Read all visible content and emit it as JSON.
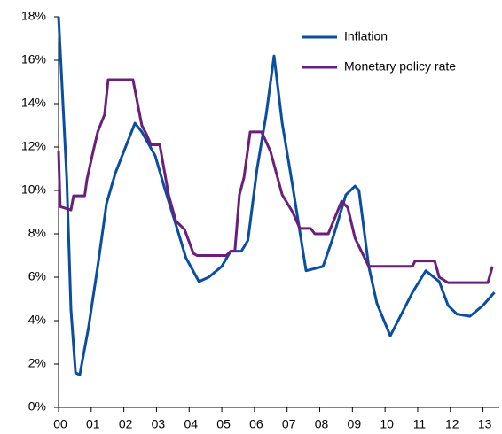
{
  "chart_data": {
    "type": "line",
    "series": [
      {
        "name": "Inflation",
        "color": "#0a4ea2",
        "x": [
          0,
          0.25,
          0.38,
          0.52,
          0.65,
          0.92,
          1.2,
          1.47,
          1.74,
          2.0,
          2.34,
          2.55,
          2.96,
          3.23,
          3.64,
          3.9,
          4.3,
          4.6,
          5.0,
          5.27,
          5.6,
          5.8,
          6.08,
          6.36,
          6.6,
          6.85,
          7.17,
          7.58,
          7.85,
          8.1,
          8.4,
          8.8,
          9.08,
          9.2,
          9.5,
          9.75,
          10.16,
          10.57,
          10.84,
          11.25,
          11.66,
          11.93,
          12.2,
          12.6,
          13.0,
          13.35
        ],
        "values": [
          18,
          10.6,
          4.5,
          1.6,
          1.5,
          3.7,
          6.5,
          9.4,
          10.8,
          11.8,
          13.1,
          12.7,
          11.6,
          10.2,
          8.2,
          6.9,
          5.8,
          6.0,
          6.5,
          7.2,
          7.2,
          7.7,
          11.0,
          13.5,
          16.2,
          13.1,
          10.2,
          6.3,
          6.4,
          6.5,
          7.8,
          9.8,
          10.2,
          10.0,
          6.5,
          4.8,
          3.3,
          4.5,
          5.3,
          6.3,
          5.8,
          4.7,
          4.3,
          4.2,
          4.7,
          5.3
        ]
      },
      {
        "name": "Monetary policy rate",
        "color": "#6a1f7a",
        "x": [
          0,
          0.05,
          0.38,
          0.46,
          0.8,
          0.87,
          1.03,
          1.2,
          1.41,
          1.52,
          2.28,
          2.55,
          2.69,
          2.83,
          3.1,
          3.37,
          3.59,
          3.86,
          4.13,
          4.24,
          5.14,
          5.27,
          5.4,
          5.54,
          5.68,
          5.87,
          6.22,
          6.49,
          6.85,
          7.17,
          7.39,
          7.72,
          7.85,
          8.26,
          8.67,
          8.86,
          9.08,
          9.5,
          10.84,
          10.92,
          11.52,
          11.66,
          11.93,
          13.15,
          13.29
        ],
        "values": [
          11.8,
          9.25,
          9.1,
          9.75,
          9.75,
          10.5,
          11.6,
          12.7,
          13.5,
          15.1,
          15.1,
          13.0,
          12.6,
          12.1,
          12.1,
          9.8,
          8.6,
          8.2,
          7.1,
          7.0,
          7.0,
          7.2,
          7.2,
          9.8,
          10.6,
          12.7,
          12.7,
          11.8,
          9.8,
          9.0,
          8.25,
          8.25,
          8.0,
          8.0,
          9.5,
          9.2,
          7.8,
          6.5,
          6.5,
          6.75,
          6.75,
          6.0,
          5.75,
          5.75,
          6.5
        ]
      }
    ],
    "xlim": [
      0,
      13.5
    ],
    "xticks": [
      {
        "value": 0,
        "label": "00"
      },
      {
        "value": 1,
        "label": "01"
      },
      {
        "value": 2,
        "label": "02"
      },
      {
        "value": 3,
        "label": "03"
      },
      {
        "value": 4,
        "label": "04"
      },
      {
        "value": 5,
        "label": "05"
      },
      {
        "value": 6,
        "label": "06"
      },
      {
        "value": 7,
        "label": "07"
      },
      {
        "value": 8,
        "label": "08"
      },
      {
        "value": 9,
        "label": "09"
      },
      {
        "value": 10,
        "label": "10"
      },
      {
        "value": 11,
        "label": "11"
      },
      {
        "value": 12,
        "label": "12"
      },
      {
        "value": 13,
        "label": "13"
      }
    ],
    "ylim": [
      0,
      18
    ],
    "yticks": [
      {
        "value": 0,
        "label": "0%"
      },
      {
        "value": 2,
        "label": "2%"
      },
      {
        "value": 4,
        "label": "4%"
      },
      {
        "value": 6,
        "label": "6%"
      },
      {
        "value": 8,
        "label": "8%"
      },
      {
        "value": 10,
        "label": "10%"
      },
      {
        "value": 12,
        "label": "12%"
      },
      {
        "value": 14,
        "label": "14%"
      },
      {
        "value": 16,
        "label": "16%"
      },
      {
        "value": 18,
        "label": "18%"
      }
    ],
    "grid": false,
    "legend": "upper right"
  }
}
